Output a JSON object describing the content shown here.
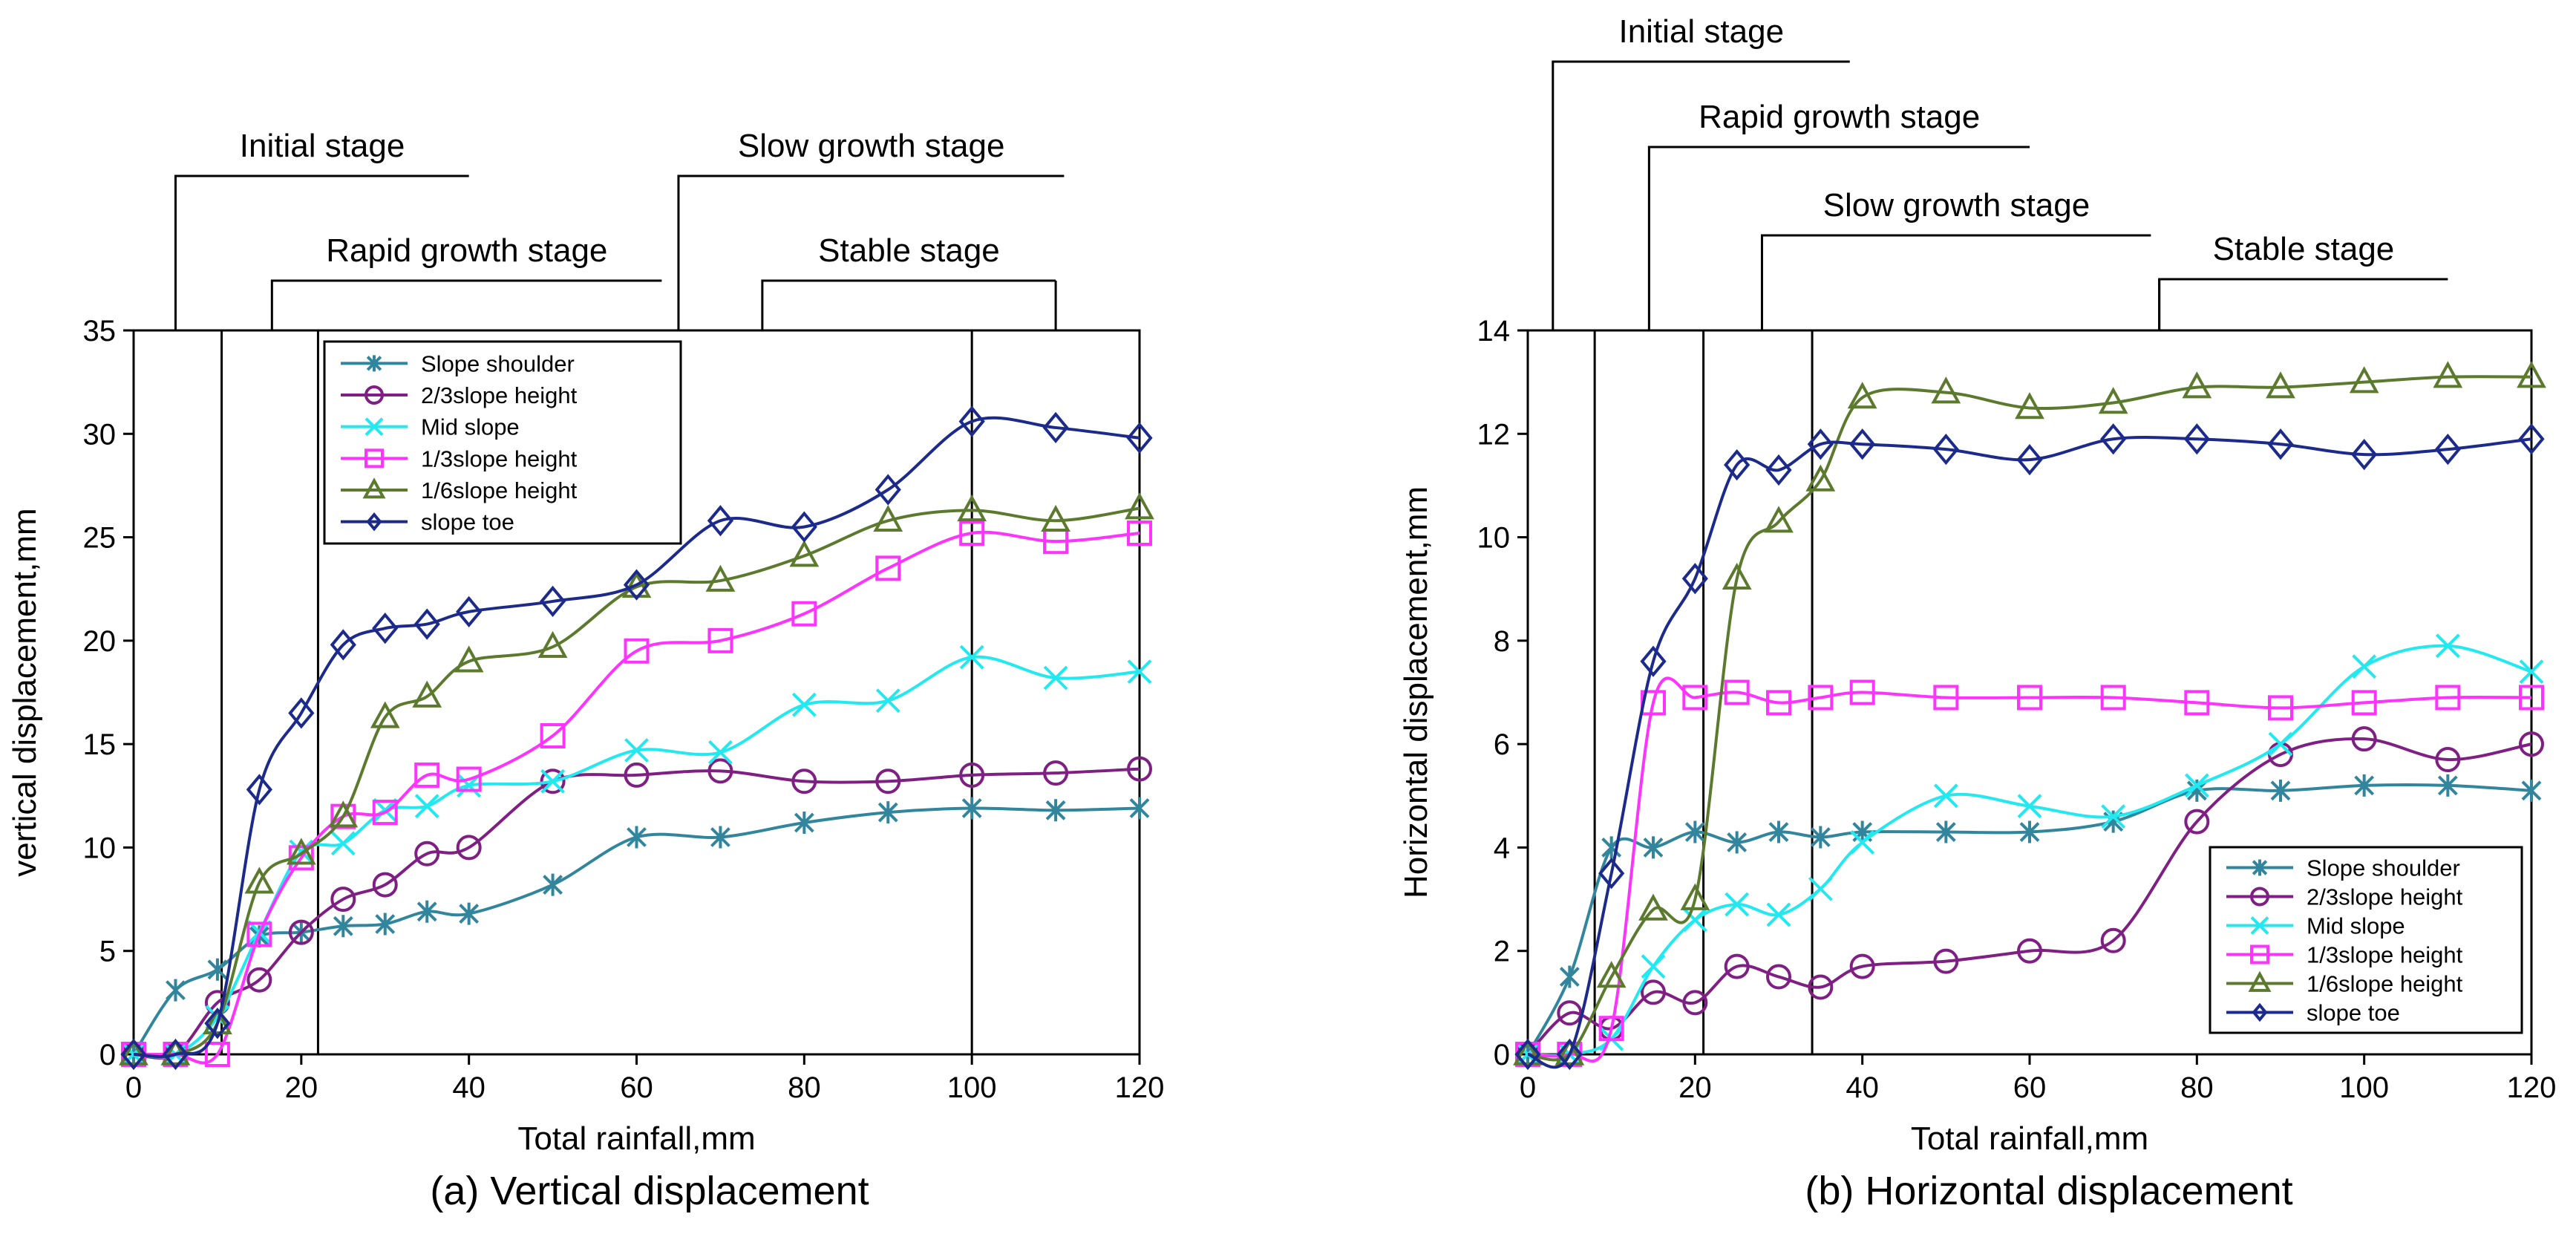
{
  "chart_data": [
    {
      "type": "line",
      "caption": "(a) Vertical displacement",
      "xlabel": "Total rainfall,mm",
      "ylabel": "vertical displacement,mm",
      "xlim": [
        0,
        120
      ],
      "ylim": [
        0,
        35
      ],
      "xticks": [
        0,
        20,
        40,
        60,
        80,
        100,
        120
      ],
      "yticks": [
        0,
        5,
        10,
        15,
        20,
        25,
        30,
        35
      ],
      "legend_position": "top-left",
      "grid": false,
      "stage_dividers": [
        10.5,
        22,
        100
      ],
      "stages": [
        {
          "label": "Initial stage",
          "x_from": 5,
          "x_to": 40,
          "row": 0
        },
        {
          "label": "Rapid growth stage",
          "x_from": 16.5,
          "x_to": 63,
          "row": 1
        },
        {
          "label": "Slow growth stage",
          "x_from": 65,
          "x_to": 111,
          "row": 0
        },
        {
          "label": "Stable stage",
          "x_from": 75,
          "x_to": 110,
          "row": 1
        }
      ],
      "series": [
        {
          "name": "Slope shoulder",
          "color": "#31859c",
          "marker": "asterisk",
          "x": [
            0,
            5,
            10,
            15,
            20,
            25,
            30,
            35,
            40,
            50,
            60,
            70,
            80,
            90,
            100,
            110,
            120
          ],
          "y": [
            0,
            3.1,
            4.1,
            5.7,
            5.9,
            6.2,
            6.3,
            6.9,
            6.8,
            8.2,
            10.5,
            10.5,
            11.2,
            11.7,
            11.9,
            11.8,
            11.9
          ]
        },
        {
          "name": "2/3slope height",
          "color": "#7f1f83",
          "marker": "circle",
          "x": [
            0,
            5,
            10,
            15,
            20,
            25,
            30,
            35,
            40,
            50,
            60,
            70,
            80,
            90,
            100,
            110,
            120
          ],
          "y": [
            0,
            0,
            2.5,
            3.6,
            5.9,
            7.5,
            8.2,
            9.7,
            10.0,
            13.2,
            13.5,
            13.7,
            13.2,
            13.2,
            13.5,
            13.6,
            13.8
          ]
        },
        {
          "name": "Mid slope",
          "color": "#22e8ef",
          "marker": "x",
          "x": [
            0,
            5,
            10,
            15,
            20,
            25,
            30,
            35,
            40,
            50,
            60,
            70,
            80,
            90,
            100,
            110,
            120
          ],
          "y": [
            0,
            0,
            1.8,
            5.9,
            9.8,
            10.2,
            11.8,
            12.0,
            13.0,
            13.2,
            14.7,
            14.6,
            16.9,
            17.1,
            19.2,
            18.2,
            18.5
          ]
        },
        {
          "name": "1/3slope height",
          "color": "#ff33ff",
          "marker": "square",
          "x": [
            0,
            5,
            10,
            15,
            20,
            25,
            30,
            35,
            40,
            50,
            60,
            70,
            80,
            90,
            100,
            110,
            120
          ],
          "y": [
            0,
            0,
            0,
            5.8,
            9.5,
            11.5,
            11.7,
            13.5,
            13.3,
            15.4,
            19.5,
            20.0,
            21.3,
            23.5,
            25.2,
            24.8,
            25.2
          ]
        },
        {
          "name": "1/6slope height",
          "color": "#5b7a2e",
          "marker": "triangle",
          "x": [
            0,
            5,
            10,
            15,
            20,
            25,
            30,
            35,
            40,
            50,
            60,
            70,
            80,
            90,
            100,
            110,
            120
          ],
          "y": [
            0,
            0,
            1.5,
            8.3,
            9.7,
            11.5,
            16.3,
            17.3,
            19.0,
            19.7,
            22.6,
            22.9,
            24.1,
            25.8,
            26.3,
            25.8,
            26.4
          ]
        },
        {
          "name": "slope toe",
          "color": "#1c2a8c",
          "marker": "diamond",
          "x": [
            0,
            5,
            10,
            15,
            20,
            25,
            30,
            35,
            40,
            50,
            60,
            70,
            80,
            90,
            100,
            110,
            120
          ],
          "y": [
            0,
            0,
            1.5,
            12.8,
            16.5,
            19.8,
            20.6,
            20.8,
            21.4,
            21.9,
            22.7,
            25.8,
            25.5,
            27.3,
            30.6,
            30.3,
            29.8
          ]
        }
      ]
    },
    {
      "type": "line",
      "caption": "(b) Horizontal displacement",
      "xlabel": "Total rainfall,mm",
      "ylabel": "Horizontal displacement,mm",
      "xlim": [
        0,
        120
      ],
      "ylim": [
        0,
        14
      ],
      "xticks": [
        0,
        20,
        40,
        60,
        80,
        100,
        120
      ],
      "yticks": [
        0,
        2,
        4,
        6,
        8,
        10,
        12,
        14
      ],
      "legend_position": "bottom-right",
      "grid": false,
      "stage_dividers": [
        8,
        21,
        34
      ],
      "stages": [
        {
          "label": "Initial stage",
          "x_from": 3,
          "x_to": 38.5,
          "row": 0
        },
        {
          "label": "Rapid growth stage",
          "x_from": 14.5,
          "x_to": 60,
          "row": 1
        },
        {
          "label": "Slow growth stage",
          "x_from": 28,
          "x_to": 74.5,
          "row": 2
        },
        {
          "label": "Stable stage",
          "x_from": 75.5,
          "x_to": 110,
          "row": 3
        }
      ],
      "series": [
        {
          "name": "Slope shoulder",
          "color": "#31859c",
          "marker": "asterisk",
          "x": [
            0,
            5,
            10,
            15,
            20,
            25,
            30,
            35,
            40,
            50,
            60,
            70,
            80,
            90,
            100,
            110,
            120
          ],
          "y": [
            0,
            1.5,
            4.0,
            4.0,
            4.3,
            4.1,
            4.3,
            4.2,
            4.3,
            4.3,
            4.3,
            4.5,
            5.1,
            5.1,
            5.2,
            5.2,
            5.1
          ]
        },
        {
          "name": "2/3slope height",
          "color": "#7f1f83",
          "marker": "circle",
          "x": [
            0,
            5,
            10,
            15,
            20,
            25,
            30,
            35,
            40,
            50,
            60,
            70,
            80,
            90,
            100,
            110,
            120
          ],
          "y": [
            0,
            0.8,
            0.5,
            1.2,
            1.0,
            1.7,
            1.5,
            1.3,
            1.7,
            1.8,
            2.0,
            2.2,
            4.5,
            5.8,
            6.1,
            5.7,
            6.0
          ]
        },
        {
          "name": "Mid slope",
          "color": "#22e8ef",
          "marker": "x",
          "x": [
            0,
            5,
            10,
            15,
            20,
            25,
            30,
            35,
            40,
            50,
            60,
            70,
            80,
            90,
            100,
            110,
            120
          ],
          "y": [
            0,
            0,
            0.3,
            1.7,
            2.6,
            2.9,
            2.7,
            3.2,
            4.1,
            5.0,
            4.8,
            4.6,
            5.2,
            6.0,
            7.5,
            7.9,
            7.4
          ]
        },
        {
          "name": "1/3slope height",
          "color": "#ff33ff",
          "marker": "square",
          "x": [
            0,
            5,
            10,
            15,
            20,
            25,
            30,
            35,
            40,
            50,
            60,
            70,
            80,
            90,
            100,
            110,
            120
          ],
          "y": [
            0,
            0,
            0.5,
            6.8,
            6.9,
            7.0,
            6.8,
            6.9,
            7.0,
            6.9,
            6.9,
            6.9,
            6.8,
            6.7,
            6.8,
            6.9,
            6.9
          ]
        },
        {
          "name": "1/6slope height",
          "color": "#5b7a2e",
          "marker": "triangle",
          "x": [
            0,
            5,
            10,
            15,
            20,
            25,
            30,
            35,
            40,
            50,
            60,
            70,
            80,
            90,
            100,
            110,
            120
          ],
          "y": [
            0,
            0,
            1.5,
            2.8,
            3.0,
            9.2,
            10.3,
            11.1,
            12.7,
            12.8,
            12.5,
            12.6,
            12.9,
            12.9,
            13.0,
            13.1,
            13.1
          ]
        },
        {
          "name": "slope toe",
          "color": "#1c2a8c",
          "marker": "diamond",
          "x": [
            0,
            5,
            10,
            15,
            20,
            25,
            30,
            35,
            40,
            50,
            60,
            70,
            80,
            90,
            100,
            110,
            120
          ],
          "y": [
            0,
            0,
            3.5,
            7.6,
            9.2,
            11.4,
            11.3,
            11.8,
            11.8,
            11.7,
            11.5,
            11.9,
            11.9,
            11.8,
            11.6,
            11.7,
            11.9
          ]
        }
      ]
    }
  ]
}
